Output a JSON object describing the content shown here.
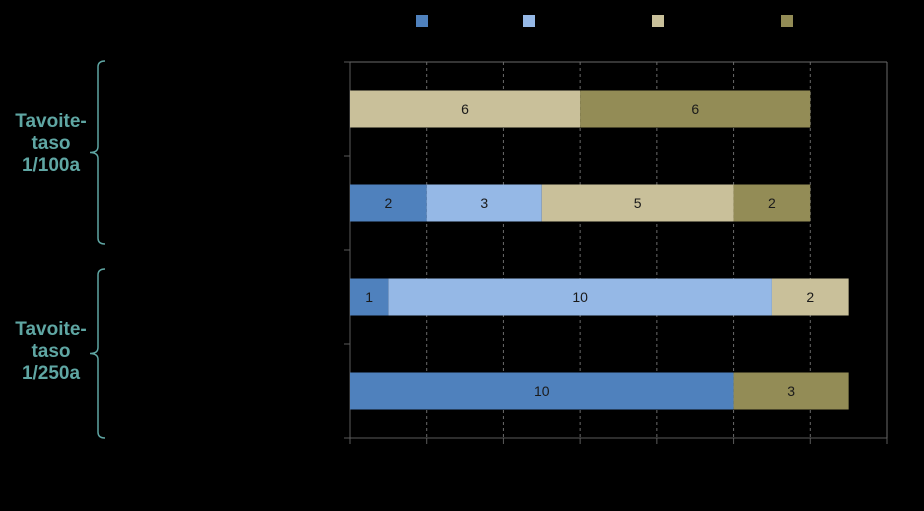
{
  "colors": {
    "background": "#000000",
    "axis": "#5a5a5a",
    "grid": "#6a6a6a",
    "bar_label": "#1a1a1a",
    "bracket": "#5fa6a3",
    "group_label": "#5fa6a3"
  },
  "groups": [
    {
      "lines": [
        "Tavoite-",
        "taso",
        "1/100a"
      ]
    },
    {
      "lines": [
        "Tavoite-",
        "taso",
        "1/250a"
      ]
    }
  ],
  "chart_data": {
    "type": "bar",
    "orientation": "horizontal",
    "stacked": true,
    "xlim": [
      0,
      14
    ],
    "grid": true,
    "legend_position": "top",
    "series": [
      {
        "color": "#4f81bd",
        "values": [
          0,
          2,
          1,
          10
        ]
      },
      {
        "color": "#95b8e6",
        "values": [
          0,
          3,
          10,
          0
        ]
      },
      {
        "color": "#c9c09a",
        "values": [
          6,
          5,
          2,
          0
        ]
      },
      {
        "color": "#938c56",
        "values": [
          6,
          2,
          0,
          3
        ]
      }
    ]
  }
}
